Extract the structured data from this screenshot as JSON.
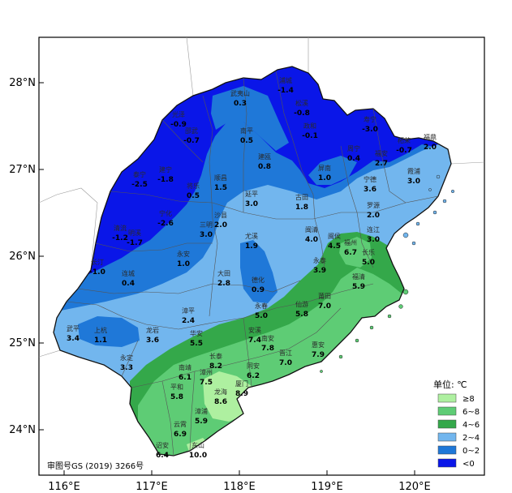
{
  "map": {
    "lat_ticks": [
      "28°N",
      "27°N",
      "26°N",
      "25°N",
      "24°N"
    ],
    "lon_ticks": [
      "116°E",
      "117°E",
      "118°E",
      "119°E",
      "120°E"
    ],
    "approval_note": "审图号GS (2019) 3266号"
  },
  "legend": {
    "title": "单位: ℃",
    "items": [
      {
        "label": "≥8",
        "color": "#aef0a0"
      },
      {
        "label": "6~8",
        "color": "#5ecc75"
      },
      {
        "label": "4~6",
        "color": "#34a84a"
      },
      {
        "label": "2~4",
        "color": "#72b6ee"
      },
      {
        "label": "0~2",
        "color": "#1f78d8"
      },
      {
        "label": "<0",
        "color": "#0a16e8"
      }
    ]
  },
  "stations": [
    {
      "name": "浦城",
      "value": "-1.4"
    },
    {
      "name": "武夷山",
      "value": "0.3"
    },
    {
      "name": "松溪",
      "value": "-0.8"
    },
    {
      "name": "政和",
      "value": "-0.1"
    },
    {
      "name": "寿宁",
      "value": "-3.0"
    },
    {
      "name": "福鼎",
      "value": "2.0"
    },
    {
      "name": "柘荣",
      "value": "-0.7"
    },
    {
      "name": "光泽",
      "value": "-0.9"
    },
    {
      "name": "邵武",
      "value": "-0.7"
    },
    {
      "name": "南平",
      "value": "0.5"
    },
    {
      "name": "建瓯",
      "value": "0.8"
    },
    {
      "name": "周宁",
      "value": "0.4"
    },
    {
      "name": "福安",
      "value": "2.7"
    },
    {
      "name": "霞浦",
      "value": "3.0"
    },
    {
      "name": "屏南",
      "value": "1.0"
    },
    {
      "name": "泰宁",
      "value": "-2.5"
    },
    {
      "name": "建宁",
      "value": "-1.8"
    },
    {
      "name": "将乐",
      "value": "0.5"
    },
    {
      "name": "顺昌",
      "value": "1.5"
    },
    {
      "name": "延平",
      "value": "3.0"
    },
    {
      "name": "古田",
      "value": "1.8"
    },
    {
      "name": "宁德",
      "value": "3.6"
    },
    {
      "name": "罗源",
      "value": "2.0"
    },
    {
      "name": "宁化",
      "value": "-2.6"
    },
    {
      "name": "沙县",
      "value": "2.0"
    },
    {
      "name": "三明",
      "value": "3.0"
    },
    {
      "name": "连江",
      "value": "3.0"
    },
    {
      "name": "清流",
      "value": "-1.2"
    },
    {
      "name": "明溪",
      "value": "-1.7"
    },
    {
      "name": "尤溪",
      "value": "1.9"
    },
    {
      "name": "闽清",
      "value": "4.0"
    },
    {
      "name": "闽侯",
      "value": "4.5"
    },
    {
      "name": "福州",
      "value": "6.7"
    },
    {
      "name": "长乐",
      "value": "5.0"
    },
    {
      "name": "长汀",
      "value": "-1.0"
    },
    {
      "name": "永安",
      "value": "1.0"
    },
    {
      "name": "连城",
      "value": "0.4"
    },
    {
      "name": "大田",
      "value": "2.8"
    },
    {
      "name": "德化",
      "value": "0.9"
    },
    {
      "name": "永泰",
      "value": "3.9"
    },
    {
      "name": "福清",
      "value": "5.9"
    },
    {
      "name": "仙游",
      "value": "5.8"
    },
    {
      "name": "莆田",
      "value": "7.0"
    },
    {
      "name": "漳平",
      "value": "2.4"
    },
    {
      "name": "永春",
      "value": "5.0"
    },
    {
      "name": "武平",
      "value": "3.4"
    },
    {
      "name": "上杭",
      "value": "1.1"
    },
    {
      "name": "龙岩",
      "value": "3.6"
    },
    {
      "name": "安溪",
      "value": "7.4"
    },
    {
      "name": "南安",
      "value": "7.8"
    },
    {
      "name": "华安",
      "value": "5.5"
    },
    {
      "name": "惠安",
      "value": "7.9"
    },
    {
      "name": "永定",
      "value": "3.3"
    },
    {
      "name": "长泰",
      "value": "8.2"
    },
    {
      "name": "同安",
      "value": "6.2"
    },
    {
      "name": "晋江",
      "value": "7.0"
    },
    {
      "name": "南靖",
      "value": "6.1"
    },
    {
      "name": "漳州",
      "value": "7.5"
    },
    {
      "name": "厦门",
      "value": "8.9"
    },
    {
      "name": "平和",
      "value": "5.8"
    },
    {
      "name": "龙海",
      "value": "8.6"
    },
    {
      "name": "漳浦",
      "value": "5.9"
    },
    {
      "name": "云霄",
      "value": "6.9"
    },
    {
      "name": "诏安",
      "value": "6.4"
    },
    {
      "name": "东山",
      "value": "10.0"
    }
  ]
}
